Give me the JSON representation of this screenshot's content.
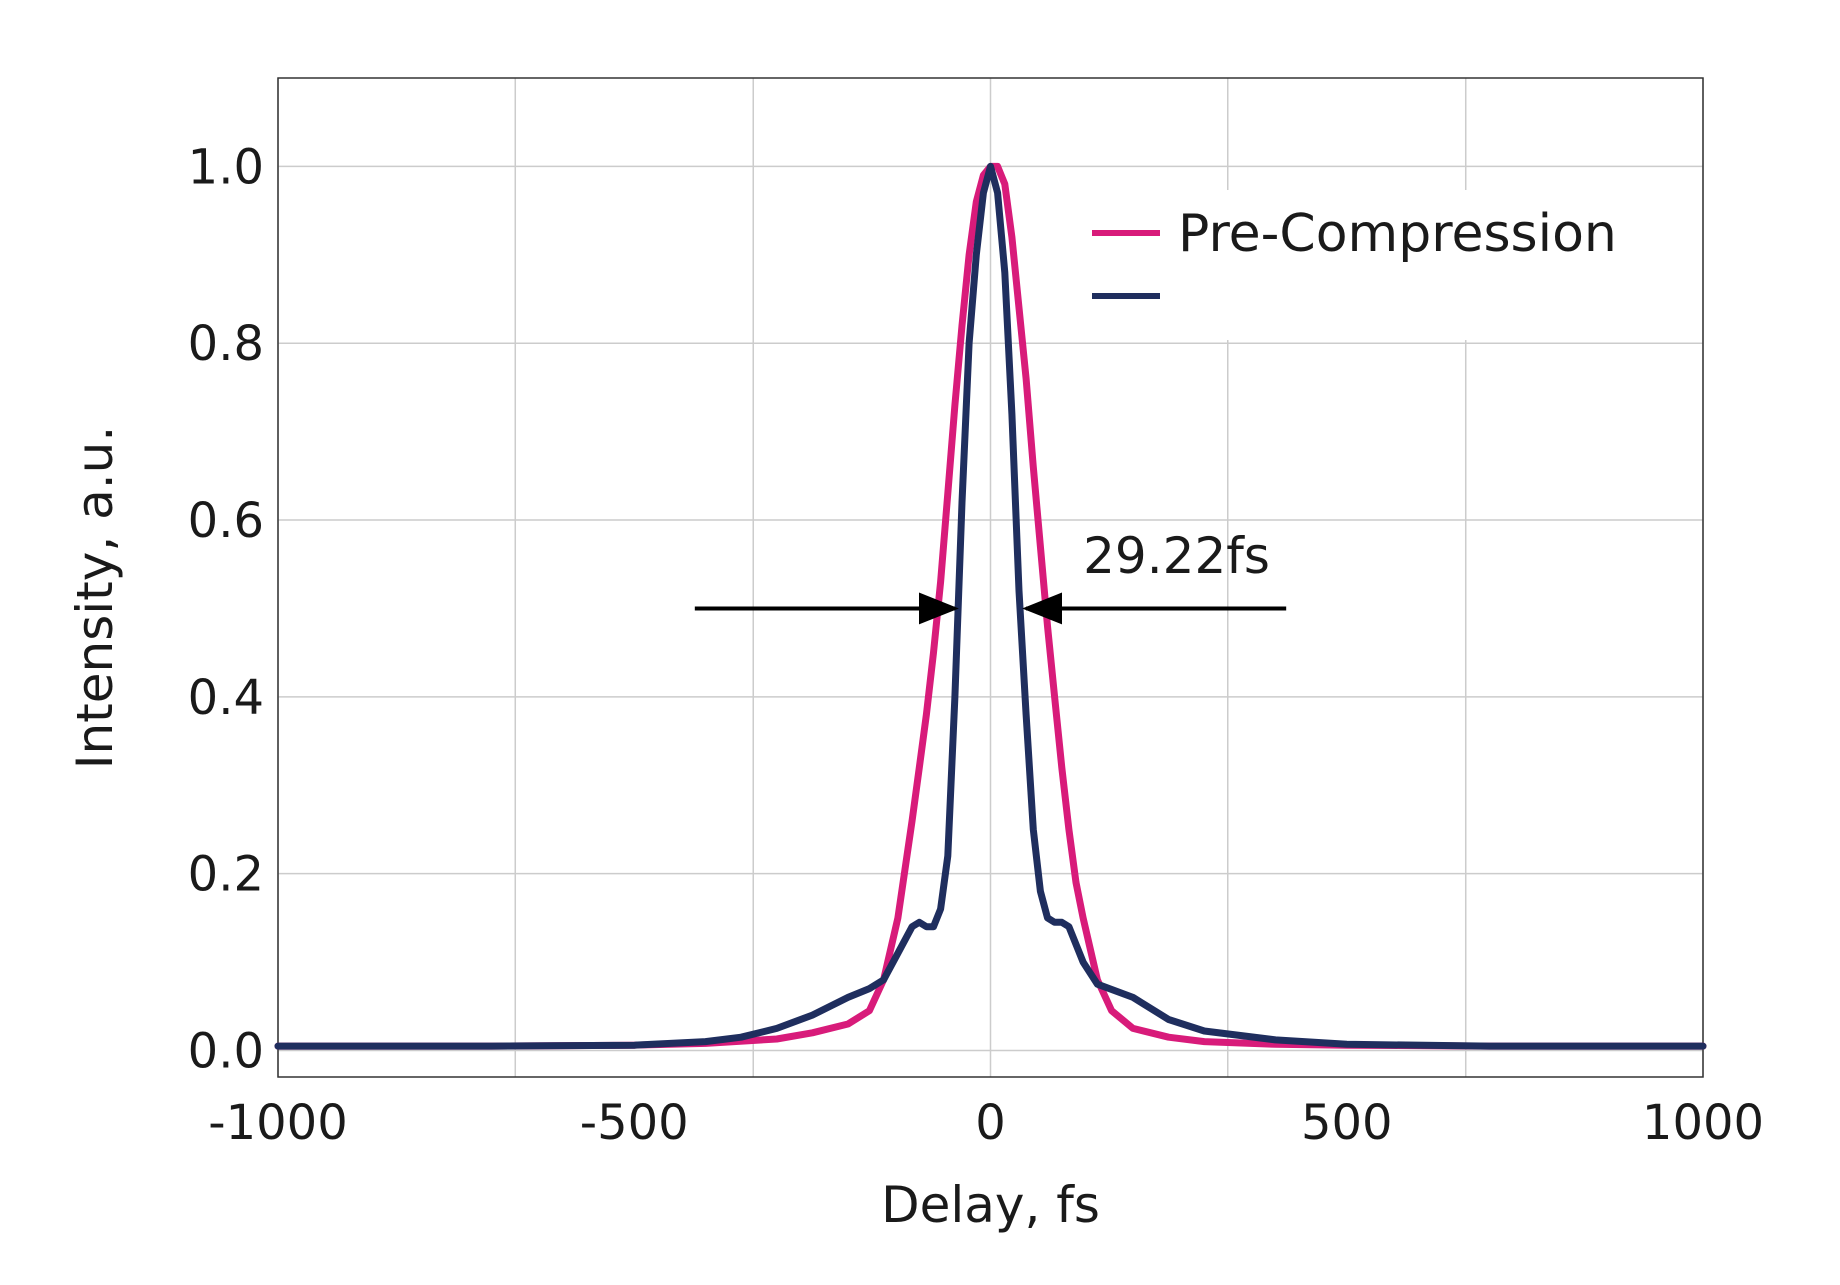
{
  "chart_data": {
    "type": "line",
    "title": "",
    "xlabel": "Delay, fs",
    "ylabel": "Intensity, a.u.",
    "xlim": [
      -1000,
      1000
    ],
    "ylim": [
      -0.03,
      1.1
    ],
    "grid": true,
    "legend_position": "top-right",
    "x_ticks": [
      -1000,
      -500,
      0,
      500,
      1000
    ],
    "x_tick_labels": [
      "-1000",
      "-500",
      "0",
      "500",
      "1000"
    ],
    "y_ticks": [
      0.0,
      0.2,
      0.4,
      0.6,
      0.8,
      1.0
    ],
    "y_tick_labels": [
      "0.0",
      "0.2",
      "0.4",
      "0.6",
      "0.8",
      "1.0"
    ],
    "series": [
      {
        "name": "Pre-Compression",
        "color": "#d81b7a",
        "x": [
          -1000,
          -700,
          -500,
          -400,
          -300,
          -250,
          -200,
          -170,
          -150,
          -130,
          -110,
          -100,
          -90,
          -80,
          -70,
          -60,
          -50,
          -40,
          -30,
          -20,
          -10,
          0,
          10,
          20,
          30,
          40,
          50,
          60,
          70,
          80,
          90,
          100,
          110,
          120,
          130,
          150,
          170,
          200,
          250,
          300,
          400,
          500,
          700,
          1000
        ],
        "y": [
          0.005,
          0.005,
          0.006,
          0.008,
          0.013,
          0.02,
          0.03,
          0.045,
          0.08,
          0.15,
          0.26,
          0.32,
          0.38,
          0.45,
          0.53,
          0.63,
          0.73,
          0.82,
          0.9,
          0.96,
          0.99,
          1.0,
          1.0,
          0.98,
          0.92,
          0.84,
          0.76,
          0.66,
          0.57,
          0.48,
          0.4,
          0.32,
          0.25,
          0.19,
          0.15,
          0.08,
          0.045,
          0.025,
          0.015,
          0.01,
          0.007,
          0.006,
          0.005,
          0.005
        ]
      },
      {
        "name": "",
        "color": "#1f2e5e",
        "x": [
          -1000,
          -700,
          -500,
          -400,
          -350,
          -300,
          -250,
          -200,
          -170,
          -150,
          -130,
          -110,
          -100,
          -90,
          -80,
          -70,
          -60,
          -50,
          -40,
          -30,
          -20,
          -10,
          0,
          10,
          20,
          30,
          40,
          50,
          60,
          70,
          80,
          90,
          100,
          110,
          130,
          150,
          200,
          250,
          300,
          400,
          500,
          700,
          1000
        ],
        "y": [
          0.005,
          0.005,
          0.006,
          0.01,
          0.015,
          0.025,
          0.04,
          0.06,
          0.07,
          0.08,
          0.11,
          0.14,
          0.145,
          0.14,
          0.14,
          0.16,
          0.22,
          0.4,
          0.62,
          0.8,
          0.9,
          0.97,
          1.0,
          0.97,
          0.88,
          0.72,
          0.52,
          0.38,
          0.25,
          0.18,
          0.15,
          0.145,
          0.145,
          0.14,
          0.1,
          0.075,
          0.06,
          0.035,
          0.022,
          0.012,
          0.007,
          0.005,
          0.005
        ]
      }
    ],
    "annotations": [
      {
        "text": "29.22fs",
        "arrow_y": 0.5,
        "left_arrow_from": -415,
        "left_arrow_to": -50,
        "right_arrow_from": 415,
        "right_arrow_to": 50,
        "text_x": 130,
        "text_y": 0.54
      }
    ]
  }
}
